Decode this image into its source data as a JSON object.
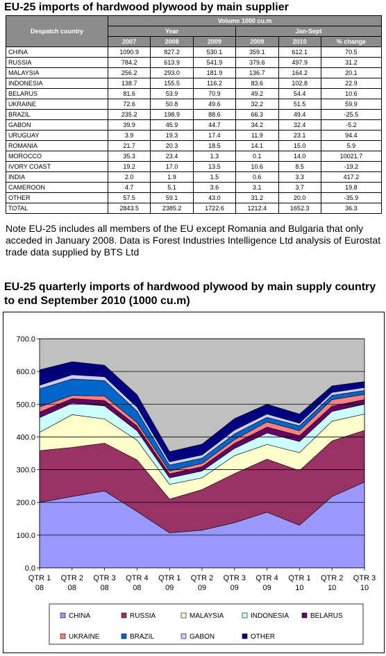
{
  "title1": "EU-25 imports of hardwood plywood by main supplier",
  "table": {
    "col_despatch": "Despatch country",
    "col_volume": "Volume 1000 cu.m",
    "col_year": "Year",
    "col_jansept": "Jan-Sept",
    "years": [
      "2007",
      "2008",
      "2009",
      "2009",
      "2010",
      "% change"
    ],
    "rows": [
      {
        "name": "CHINA",
        "values": [
          "1090.9",
          "827.2",
          "530.1",
          "359.1",
          "612.1",
          "70.5"
        ]
      },
      {
        "name": "RUSSIA",
        "values": [
          "784.2",
          "613.9",
          "541.9",
          "379.6",
          "497.9",
          "31.2"
        ]
      },
      {
        "name": "MALAYSIA",
        "values": [
          "256.2",
          "293.0",
          "181.9",
          "136.7",
          "164.2",
          "20.1"
        ]
      },
      {
        "name": "INDONESIA",
        "values": [
          "138.7",
          "155.5",
          "116.2",
          "83.6",
          "102.8",
          "22.9"
        ]
      },
      {
        "name": "BELARUS",
        "values": [
          "81.6",
          "53.9",
          "70.9",
          "49.2",
          "54.4",
          "10.6"
        ]
      },
      {
        "name": "UKRAINE",
        "values": [
          "72.6",
          "50.8",
          "49.6",
          "32.2",
          "51.5",
          "59.9"
        ]
      },
      {
        "name": "BRAZIL",
        "values": [
          "235.2",
          "198.9",
          "88.6",
          "66.3",
          "49.4",
          "-25.5"
        ]
      },
      {
        "name": "GABON",
        "values": [
          "39.9",
          "45.9",
          "44.7",
          "34.2",
          "32.4",
          "-5.2"
        ]
      },
      {
        "name": "URUGUAY",
        "values": [
          "3.9",
          "19.3",
          "17.4",
          "11.9",
          "23.1",
          "94.4"
        ]
      },
      {
        "name": "ROMANIA",
        "values": [
          "21.7",
          "20.3",
          "18.5",
          "14.1",
          "15.0",
          "5.9"
        ]
      },
      {
        "name": "MOROCCO",
        "values": [
          "35.3",
          "23.4",
          "1.3",
          "0.1",
          "14.0",
          "10021.7"
        ]
      },
      {
        "name": "IVORY COAST",
        "values": [
          "19.2",
          "17.0",
          "13.5",
          "10.6",
          "8.5",
          "-19.2"
        ]
      },
      {
        "name": "INDIA",
        "values": [
          "2.0",
          "1.9",
          "1.5",
          "0.6",
          "3.3",
          "417.2"
        ]
      },
      {
        "name": "CAMEROON",
        "values": [
          "4.7",
          "5.1",
          "3.6",
          "3.1",
          "3.7",
          "19.8"
        ]
      },
      {
        "name": "OTHER",
        "values": [
          "57.5",
          "59.1",
          "43.0",
          "31.2",
          "20.0",
          "-35.9"
        ]
      }
    ],
    "total": {
      "name": "TOTAL",
      "values": [
        "2843.5",
        "2385.2",
        "1722.6",
        "1212.4",
        "1652.3",
        "36.3"
      ]
    }
  },
  "note": "Note EU-25 includes all members of the EU except Romania and Bulgaria that only acceded in January 2008. Data is Forest Industries Intelligence Ltd analysis of Eurostat trade data supplied by BTS Ltd",
  "title2": "EU-25 quarterly imports of hardwood plywood by main supply country to end September 2010 (1000 cu.m)",
  "chart_data": {
    "type": "area",
    "stacked": true,
    "categories": [
      [
        "QTR 1",
        "08"
      ],
      [
        "QTR 2",
        "08"
      ],
      [
        "QTR 3",
        "08"
      ],
      [
        "QTR 4",
        "08"
      ],
      [
        "QTR 1",
        "09"
      ],
      [
        "QTR 2",
        "09"
      ],
      [
        "QTR 3",
        "09"
      ],
      [
        "QTR 4",
        "09"
      ],
      [
        "QTR 1",
        "10"
      ],
      [
        "QTR 2",
        "10"
      ],
      [
        "QTR 3",
        "10"
      ]
    ],
    "ylim": [
      0,
      700
    ],
    "yticks": [
      "0.0",
      "100.0",
      "200.0",
      "300.0",
      "400.0",
      "500.0",
      "600.0",
      "700.0"
    ],
    "grid": true,
    "legend_position": "bottom",
    "plot_background": "#c0c0c0",
    "series": [
      {
        "name": "CHINA",
        "color": "#9999ff",
        "values": [
          200,
          218,
          235,
          172,
          107,
          115,
          138,
          170,
          130,
          218,
          262
        ]
      },
      {
        "name": "RUSSIA",
        "color": "#993366",
        "values": [
          158,
          150,
          146,
          158,
          103,
          124,
          150,
          162,
          167,
          170,
          158
        ]
      },
      {
        "name": "MALAYSIA",
        "color": "#ffffcc",
        "values": [
          56,
          100,
          74,
          60,
          45,
          36,
          55,
          45,
          55,
          60,
          50
        ]
      },
      {
        "name": "INDONESIA",
        "color": "#ccffff",
        "values": [
          45,
          35,
          40,
          29,
          20,
          21,
          22,
          35,
          34,
          30,
          30
        ]
      },
      {
        "name": "BELARUS",
        "color": "#660066",
        "values": [
          17,
          14,
          16,
          14,
          12,
          13,
          15,
          18,
          18,
          16,
          14
        ]
      },
      {
        "name": "UKRAINE",
        "color": "#ff8080",
        "values": [
          16,
          10,
          14,
          11,
          9,
          10,
          12,
          16,
          15,
          20,
          16
        ]
      },
      {
        "name": "BRAZIL",
        "color": "#0066cc",
        "values": [
          55,
          50,
          47,
          35,
          18,
          16,
          17,
          14,
          15,
          13,
          12
        ]
      },
      {
        "name": "GABON",
        "color": "#ccccff",
        "values": [
          11,
          13,
          12,
          12,
          10,
          10,
          12,
          10,
          8,
          9,
          9
        ]
      },
      {
        "name": "OTHER",
        "color": "#000080",
        "values": [
          47,
          40,
          35,
          38,
          31,
          33,
          35,
          30,
          28,
          20,
          18
        ]
      }
    ]
  }
}
